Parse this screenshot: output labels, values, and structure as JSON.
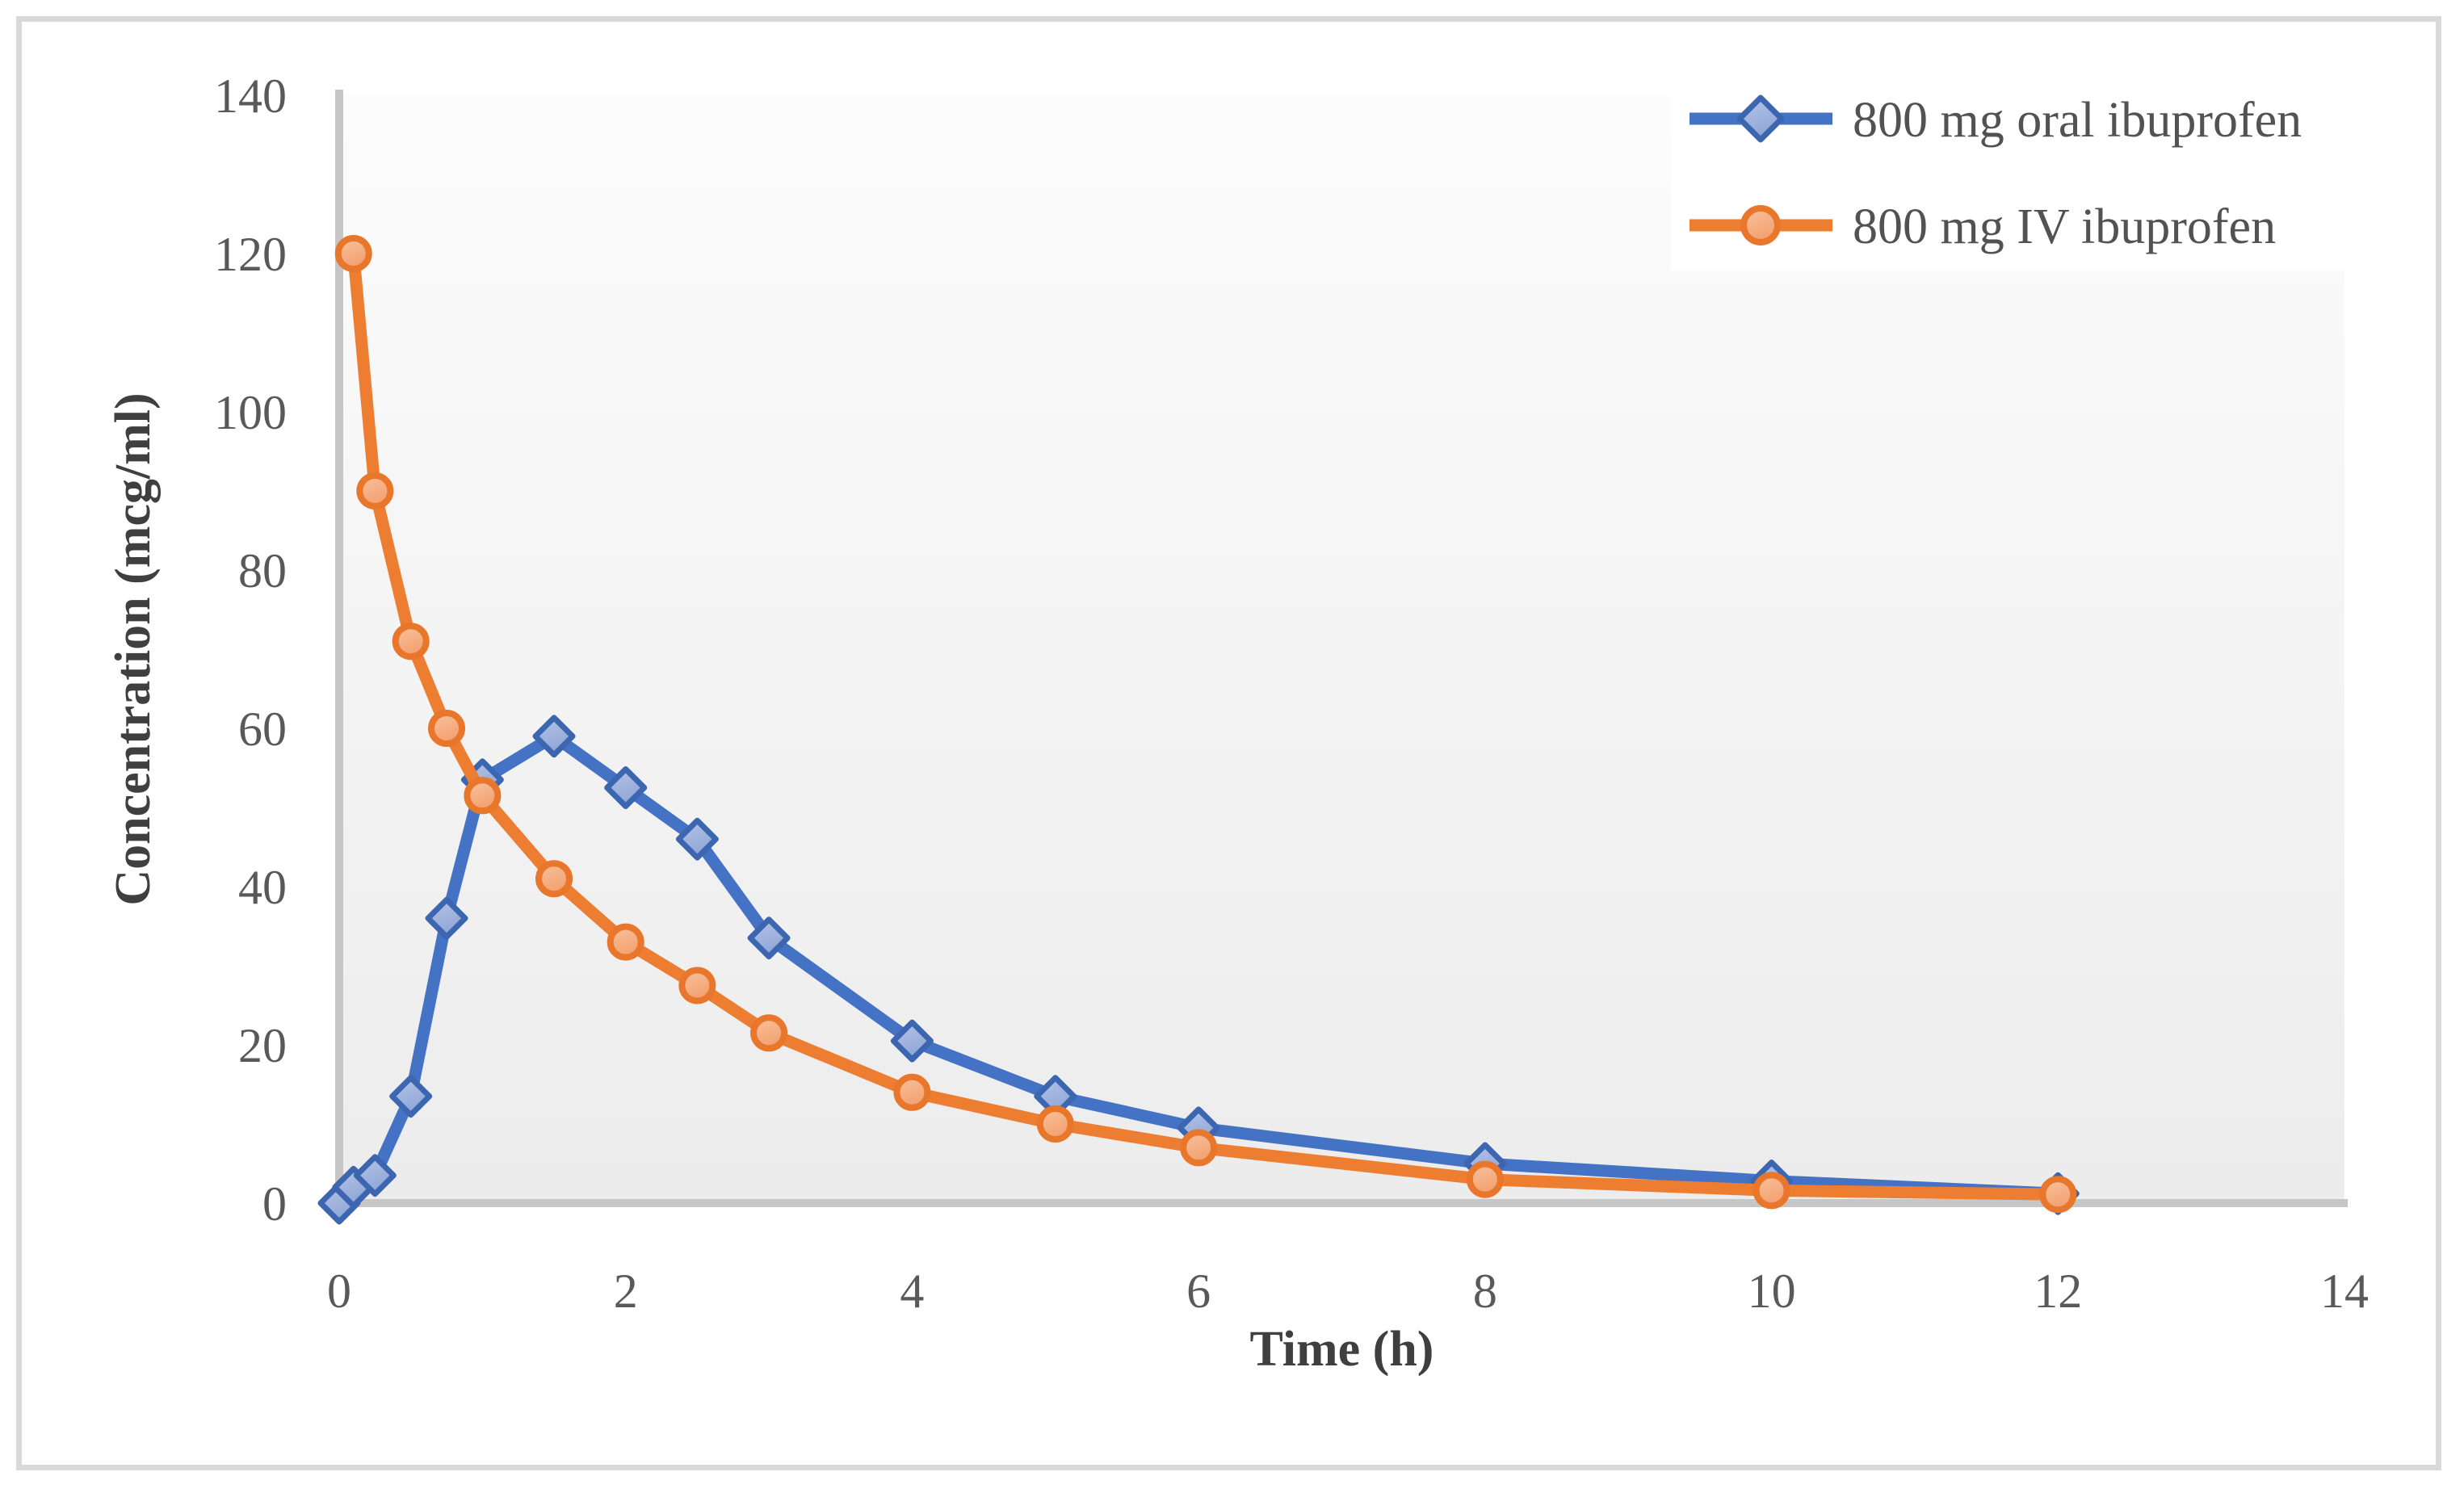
{
  "chart_data": {
    "type": "line",
    "title": "",
    "xlabel": "Time (h)",
    "ylabel": "Concentration (mcg/ml)",
    "xlim": [
      0,
      14
    ],
    "ylim": [
      0,
      140
    ],
    "x_ticks": [
      0,
      2,
      4,
      6,
      8,
      10,
      12,
      14
    ],
    "y_ticks": [
      0,
      20,
      40,
      60,
      80,
      100,
      120,
      140
    ],
    "grid": false,
    "legend_position": "top-right",
    "plot_bg_top": "#fcfcfc",
    "plot_bg_bottom": "#ececec",
    "axis_line_color": "#c6c6c6",
    "series": [
      {
        "name": "800 mg oral ibuprofen",
        "color": "#4472C4",
        "marker": "diamond",
        "marker_fill_light": "#b6c5e8",
        "marker_fill_dark": "#8fa6d6",
        "marker_border": "#3d66b1",
        "points": [
          [
            0,
            0
          ],
          [
            0.1,
            2
          ],
          [
            0.25,
            3.5
          ],
          [
            0.5,
            13.5
          ],
          [
            0.75,
            36
          ],
          [
            1,
            53.5
          ],
          [
            1.5,
            59
          ],
          [
            2,
            52.5
          ],
          [
            2.5,
            46
          ],
          [
            3,
            33.5
          ],
          [
            4,
            20.5
          ],
          [
            5,
            13.5
          ],
          [
            6,
            9.5
          ],
          [
            8,
            5
          ],
          [
            10,
            2.8
          ],
          [
            12,
            1.2
          ]
        ]
      },
      {
        "name": "800 mg IV ibuprofen",
        "color": "#ED7D31",
        "marker": "circle",
        "marker_fill_light": "#f9c29e",
        "marker_fill_dark": "#f3a170",
        "marker_border": "#e8762b",
        "points": [
          [
            0.1,
            120
          ],
          [
            0.25,
            90
          ],
          [
            0.5,
            71
          ],
          [
            0.75,
            60
          ],
          [
            1,
            51.5
          ],
          [
            1.5,
            41
          ],
          [
            2,
            33
          ],
          [
            2.5,
            27.5
          ],
          [
            3,
            21.5
          ],
          [
            4,
            14
          ],
          [
            5,
            10
          ],
          [
            6,
            7
          ],
          [
            8,
            3
          ],
          [
            10,
            1.6
          ],
          [
            12,
            1.1
          ]
        ]
      }
    ]
  }
}
